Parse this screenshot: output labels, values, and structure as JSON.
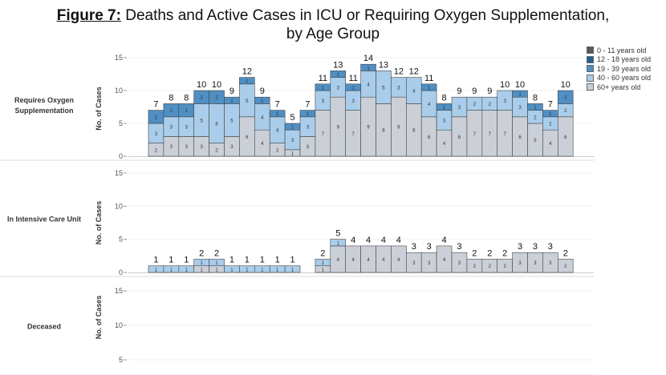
{
  "chart_data": {
    "type": "bar",
    "stacked": true,
    "title_prefix": "Figure 7:",
    "title_line1": "Deaths and Active Cases in ICU or Requiring Oxygen Supplementation,",
    "title_line2": "by Age Group",
    "ylabel": "No. of Cases",
    "legend_position": "top-right",
    "legend": [
      {
        "name": "0 - 11 years old",
        "color": "#555a60"
      },
      {
        "name": "12 - 18 years old",
        "color": "#1f5f91"
      },
      {
        "name": "19 - 39 years old",
        "color": "#4f8fc4"
      },
      {
        "name": "40 - 60 years old",
        "color": "#a9cdea"
      },
      {
        "name": "60+ years old",
        "color": "#cbd0d8"
      }
    ],
    "panels": [
      {
        "label_lines": [
          "Requires Oxygen",
          "Supplementation"
        ],
        "ylim": [
          0,
          16
        ],
        "yticks": [
          0,
          5,
          10,
          15
        ],
        "series": {
          "60+ years old": [
            2,
            3,
            3,
            3,
            2,
            3,
            6,
            4,
            2,
            1,
            3,
            7,
            9,
            7,
            9,
            8,
            9,
            8,
            6,
            4,
            6,
            7,
            7,
            7,
            6,
            5,
            4,
            6
          ],
          "40 - 60 years old": [
            3,
            3,
            3,
            5,
            6,
            5,
            5,
            4,
            4,
            3,
            3,
            3,
            3,
            3,
            4,
            5,
            3,
            4,
            4,
            3,
            3,
            2,
            2,
            3,
            3,
            2,
            2,
            2
          ],
          "19 - 39 years old": [
            2,
            2,
            2,
            2,
            2,
            1,
            1,
            1,
            1,
            1,
            1,
            1,
            1,
            1,
            1,
            0,
            0,
            0,
            1,
            1,
            0,
            0,
            0,
            0,
            1,
            1,
            1,
            2
          ]
        },
        "totals": [
          7,
          8,
          8,
          10,
          10,
          9,
          12,
          9,
          7,
          5,
          7,
          11,
          13,
          11,
          14,
          13,
          12,
          12,
          11,
          8,
          9,
          9,
          9,
          10,
          10,
          8,
          7,
          10
        ]
      },
      {
        "label_lines": [
          "In Intensive Care Unit"
        ],
        "ylim": [
          0,
          16
        ],
        "yticks": [
          0,
          5,
          10,
          15
        ],
        "series": {
          "60+ years old": [
            0,
            0,
            0,
            1,
            1,
            0,
            0,
            0,
            0,
            0,
            0,
            1,
            4,
            4,
            4,
            4,
            4,
            3,
            3,
            4,
            3,
            2,
            2,
            2,
            3,
            3,
            3,
            2
          ],
          "40 - 60 years old": [
            1,
            1,
            1,
            1,
            1,
            1,
            1,
            1,
            1,
            1,
            0,
            1,
            1,
            0,
            0,
            0,
            0,
            0,
            0,
            0,
            0,
            0,
            0,
            0,
            0,
            0,
            0,
            0
          ]
        },
        "totals": [
          1,
          1,
          1,
          2,
          2,
          1,
          1,
          1,
          1,
          1,
          null,
          2,
          5,
          4,
          4,
          4,
          4,
          3,
          3,
          4,
          3,
          2,
          2,
          2,
          3,
          3,
          3,
          2
        ]
      },
      {
        "label_lines": [
          "Deceased"
        ],
        "ylim": [
          0,
          16
        ],
        "yticks": [
          5,
          10,
          15
        ],
        "series": {},
        "totals": []
      }
    ]
  }
}
